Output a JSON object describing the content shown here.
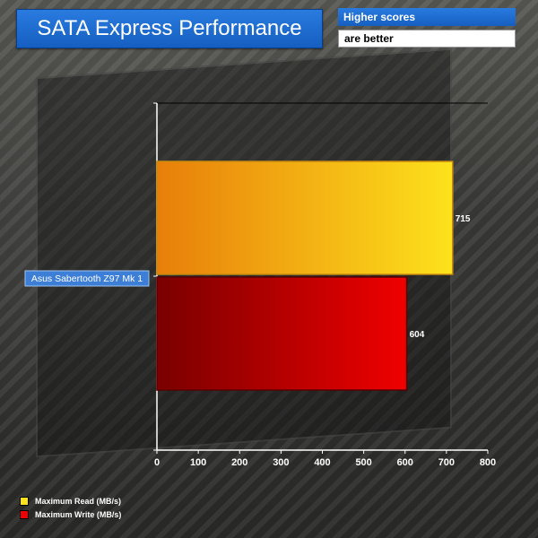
{
  "title": "SATA Express Performance",
  "note": {
    "line1": "Higher scores",
    "line2": "are better"
  },
  "colors": {
    "read_start": "#e87e0a",
    "read_end": "#fde21c",
    "write_start": "#7a0000",
    "write_end": "#f00000",
    "label_box": "#3d7fd6",
    "axis": "#ffffff"
  },
  "chart_data": {
    "type": "bar",
    "orientation": "horizontal",
    "categories": [
      "Asus Sabertooth Z97 Mk 1"
    ],
    "series": [
      {
        "name": "Maximum Read (MB/s)",
        "values": [
          715
        ]
      },
      {
        "name": "Maximum Write (MB/s)",
        "values": [
          604
        ]
      }
    ],
    "xlim": [
      0,
      800
    ],
    "xticks": [
      0,
      100,
      200,
      300,
      400,
      500,
      600,
      700,
      800
    ],
    "xlabel": "",
    "ylabel": "",
    "legend_position": "bottom-left",
    "grid": false
  }
}
